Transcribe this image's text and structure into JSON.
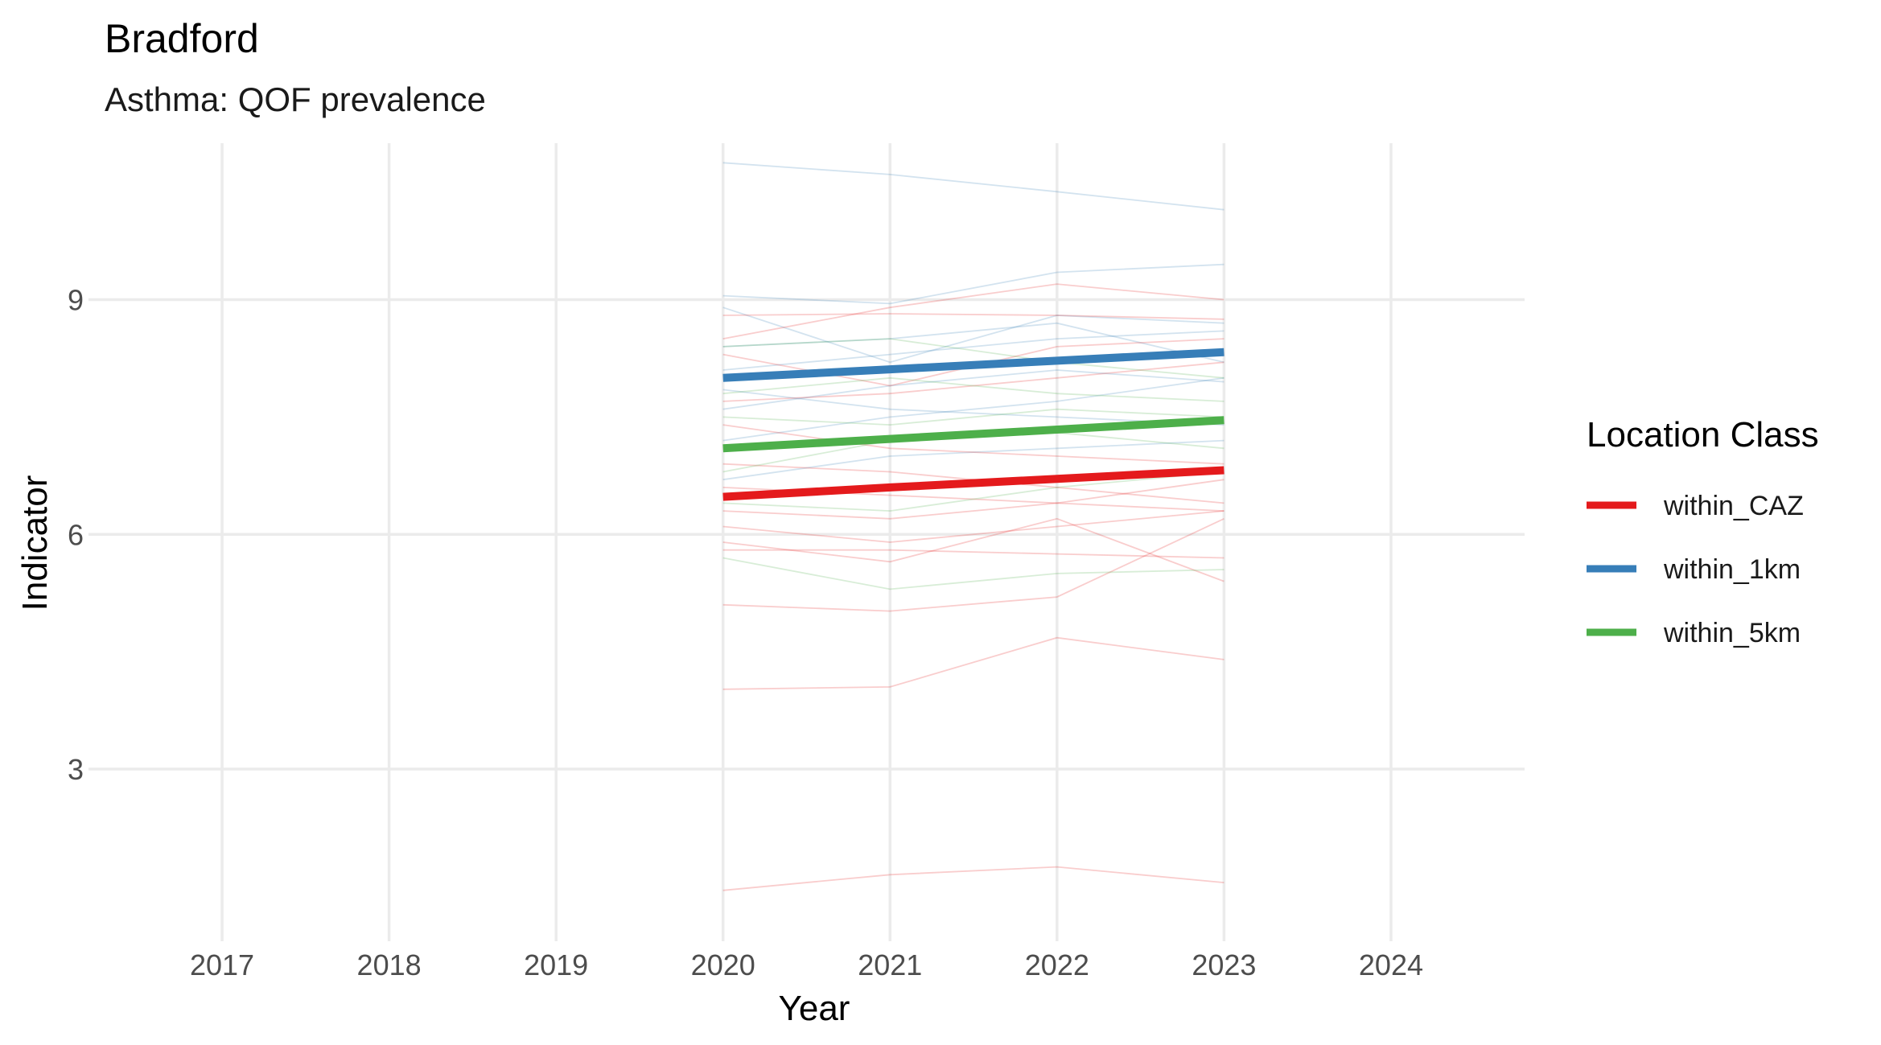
{
  "chart_data": {
    "type": "line",
    "title": "Bradford",
    "subtitle": "Asthma: QOF prevalence",
    "xlabel": "Year",
    "ylabel": "Indicator",
    "xlim": [
      2016.2,
      2024.8
    ],
    "ylim": [
      0.8,
      11.0
    ],
    "x_ticks": [
      2017,
      2018,
      2019,
      2020,
      2021,
      2022,
      2023,
      2024
    ],
    "y_ticks": [
      3,
      6,
      9
    ],
    "grid": true,
    "legend": {
      "title": "Location Class",
      "position": "right",
      "entries": [
        {
          "label": "within_CAZ",
          "color": "#e41a1c"
        },
        {
          "label": "within_1km",
          "color": "#377eb8"
        },
        {
          "label": "within_5km",
          "color": "#4daf4a"
        }
      ]
    },
    "x": [
      2020,
      2021,
      2022,
      2023
    ],
    "series": [
      {
        "name": "within_CAZ",
        "color": "#e41a1c",
        "values": [
          6.48,
          6.6,
          6.71,
          6.82
        ]
      },
      {
        "name": "within_1km",
        "color": "#377eb8",
        "values": [
          8.0,
          8.11,
          8.22,
          8.33
        ]
      },
      {
        "name": "within_5km",
        "color": "#4daf4a",
        "values": [
          7.1,
          7.22,
          7.34,
          7.46
        ]
      }
    ],
    "background_series": [
      {
        "group": "within_1km",
        "values": [
          10.75,
          10.6,
          10.38,
          10.15
        ]
      },
      {
        "group": "within_1km",
        "values": [
          9.05,
          8.95,
          9.35,
          9.45
        ]
      },
      {
        "group": "within_1km",
        "values": [
          8.9,
          8.2,
          8.8,
          8.7
        ]
      },
      {
        "group": "within_1km",
        "values": [
          8.1,
          8.3,
          8.5,
          8.6
        ]
      },
      {
        "group": "within_1km",
        "values": [
          7.6,
          7.9,
          8.1,
          7.95
        ]
      },
      {
        "group": "within_1km",
        "values": [
          7.2,
          7.5,
          7.7,
          8.0
        ]
      },
      {
        "group": "within_1km",
        "values": [
          6.7,
          7.0,
          7.1,
          7.2
        ]
      },
      {
        "group": "within_1km",
        "values": [
          7.85,
          7.6,
          7.5,
          7.4
        ]
      },
      {
        "group": "within_1km",
        "values": [
          8.4,
          8.5,
          8.7,
          8.2
        ]
      },
      {
        "group": "within_CAZ",
        "values": [
          8.5,
          8.9,
          9.2,
          9.0
        ]
      },
      {
        "group": "within_CAZ",
        "values": [
          8.8,
          8.82,
          8.8,
          8.75
        ]
      },
      {
        "group": "within_CAZ",
        "values": [
          8.3,
          7.9,
          8.4,
          8.5
        ]
      },
      {
        "group": "within_CAZ",
        "values": [
          7.7,
          7.8,
          8.0,
          8.2
        ]
      },
      {
        "group": "within_CAZ",
        "values": [
          7.4,
          7.1,
          7.0,
          6.9
        ]
      },
      {
        "group": "within_CAZ",
        "values": [
          6.9,
          6.8,
          6.6,
          6.4
        ]
      },
      {
        "group": "within_CAZ",
        "values": [
          6.6,
          6.5,
          6.4,
          6.7
        ]
      },
      {
        "group": "within_CAZ",
        "values": [
          6.3,
          6.2,
          6.4,
          6.3
        ]
      },
      {
        "group": "within_CAZ",
        "values": [
          6.1,
          5.9,
          6.1,
          6.3
        ]
      },
      {
        "group": "within_CAZ",
        "values": [
          5.9,
          5.65,
          6.2,
          5.4
        ]
      },
      {
        "group": "within_CAZ",
        "values": [
          5.8,
          5.8,
          5.75,
          5.7
        ]
      },
      {
        "group": "within_CAZ",
        "values": [
          5.1,
          5.02,
          5.2,
          6.2
        ]
      },
      {
        "group": "within_CAZ",
        "values": [
          4.02,
          4.05,
          4.68,
          4.4
        ]
      },
      {
        "group": "within_CAZ",
        "values": [
          1.45,
          1.65,
          1.75,
          1.55
        ]
      },
      {
        "group": "within_5km",
        "values": [
          8.4,
          8.5,
          8.2,
          8.0
        ]
      },
      {
        "group": "within_5km",
        "values": [
          7.8,
          8.0,
          7.8,
          7.7
        ]
      },
      {
        "group": "within_5km",
        "values": [
          7.5,
          7.4,
          7.6,
          7.5
        ]
      },
      {
        "group": "within_5km",
        "values": [
          6.8,
          7.2,
          7.3,
          7.1
        ]
      },
      {
        "group": "within_5km",
        "values": [
          6.4,
          6.3,
          6.6,
          6.8
        ]
      },
      {
        "group": "within_5km",
        "values": [
          5.7,
          5.3,
          5.5,
          5.55
        ]
      }
    ]
  }
}
